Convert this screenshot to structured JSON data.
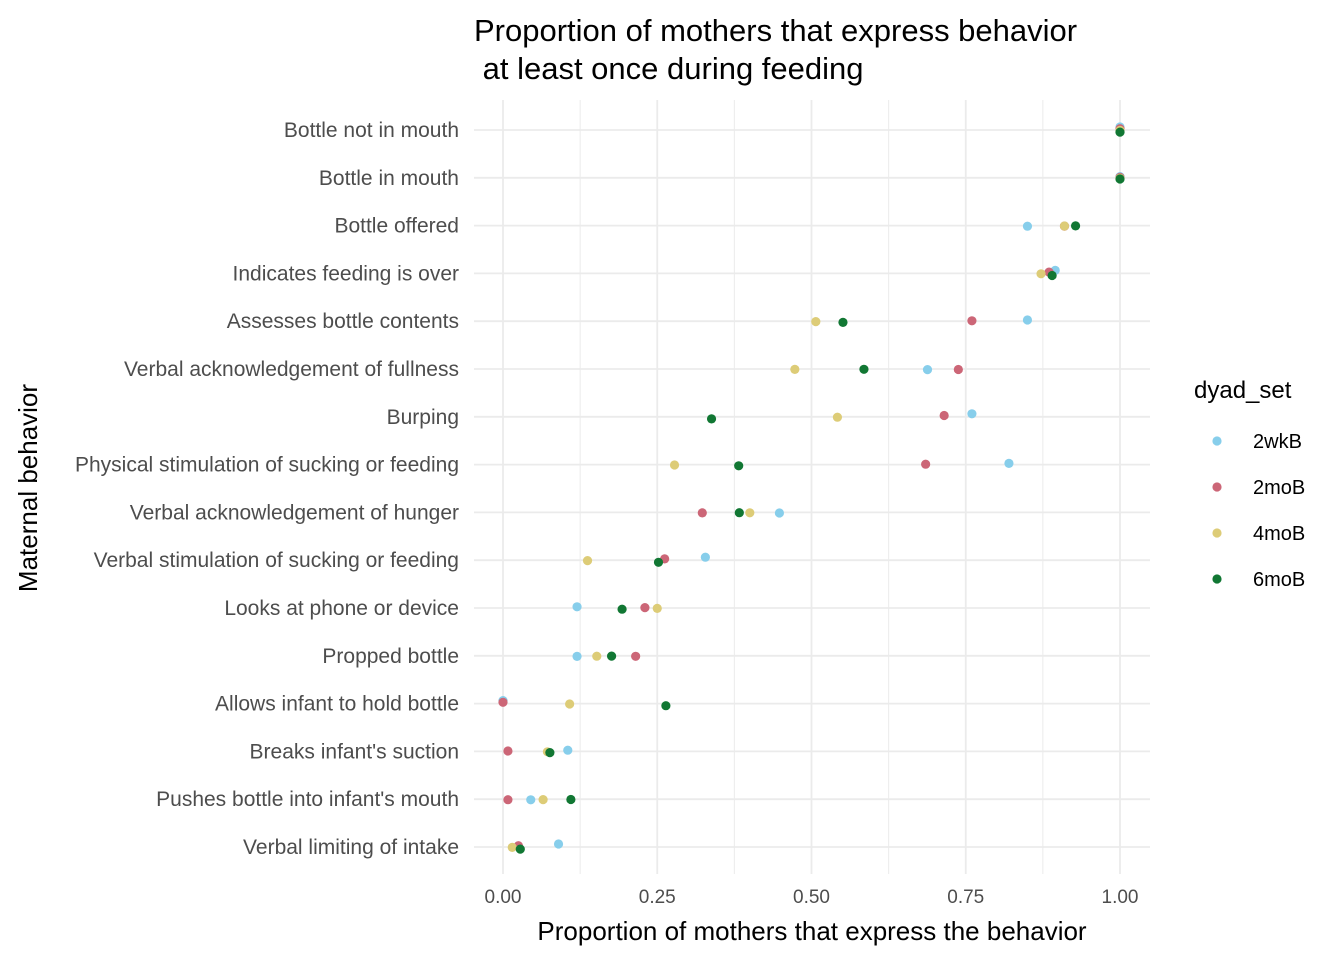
{
  "chart_data": {
    "type": "scatter",
    "title_lines": [
      "Proportion of mothers that express behavior",
      " at least once during feeding"
    ],
    "xlabel": "Proportion of mothers that express the behavior",
    "ylabel": "Maternal behavior",
    "xlim": [
      0,
      1
    ],
    "x_ticks": [
      0,
      0.25,
      0.5,
      0.75,
      1
    ],
    "x_tick_labels": [
      "0.00",
      "0.25",
      "0.50",
      "0.75",
      "1.00"
    ],
    "grid": true,
    "legend": {
      "title": "dyad_set",
      "placement": "right",
      "entries": [
        "2wkB",
        "2moB",
        "4moB",
        "6moB"
      ]
    },
    "categories": [
      "Bottle not in mouth",
      "Bottle in mouth",
      "Bottle offered",
      "Indicates feeding is over",
      "Assesses bottle contents",
      "Verbal acknowledgement of fullness",
      "Burping",
      "Physical stimulation of sucking or feeding",
      "Verbal acknowledgement of hunger",
      "Verbal stimulation of sucking or feeding",
      "Looks at phone or device",
      "Propped bottle",
      "Allows infant to hold bottle",
      "Breaks infant's suction",
      "Pushes bottle into infant's mouth",
      "Verbal limiting of intake"
    ],
    "series": [
      {
        "name": "2wkB",
        "color": "#87CEEB",
        "values": [
          1.0,
          1.0,
          0.85,
          0.895,
          0.85,
          0.688,
          0.76,
          0.82,
          0.448,
          0.328,
          0.12,
          0.12,
          0.0,
          0.105,
          0.045,
          0.09
        ]
      },
      {
        "name": "2moB",
        "color": "#CC6677",
        "values": [
          1.0,
          1.0,
          0.91,
          0.885,
          0.76,
          0.738,
          0.715,
          0.685,
          0.323,
          0.262,
          0.23,
          0.215,
          0.0,
          0.008,
          0.008,
          0.025
        ]
      },
      {
        "name": "4moB",
        "color": "#DDCC77",
        "values": [
          1.0,
          1.0,
          0.91,
          0.872,
          0.507,
          0.473,
          0.542,
          0.278,
          0.4,
          0.137,
          0.25,
          0.152,
          0.108,
          0.072,
          0.065,
          0.015
        ]
      },
      {
        "name": "6moB",
        "color": "#117733",
        "values": [
          1.0,
          1.0,
          0.928,
          0.89,
          0.551,
          0.585,
          0.338,
          0.382,
          0.383,
          0.252,
          0.193,
          0.176,
          0.264,
          0.076,
          0.11,
          0.028
        ]
      }
    ]
  }
}
